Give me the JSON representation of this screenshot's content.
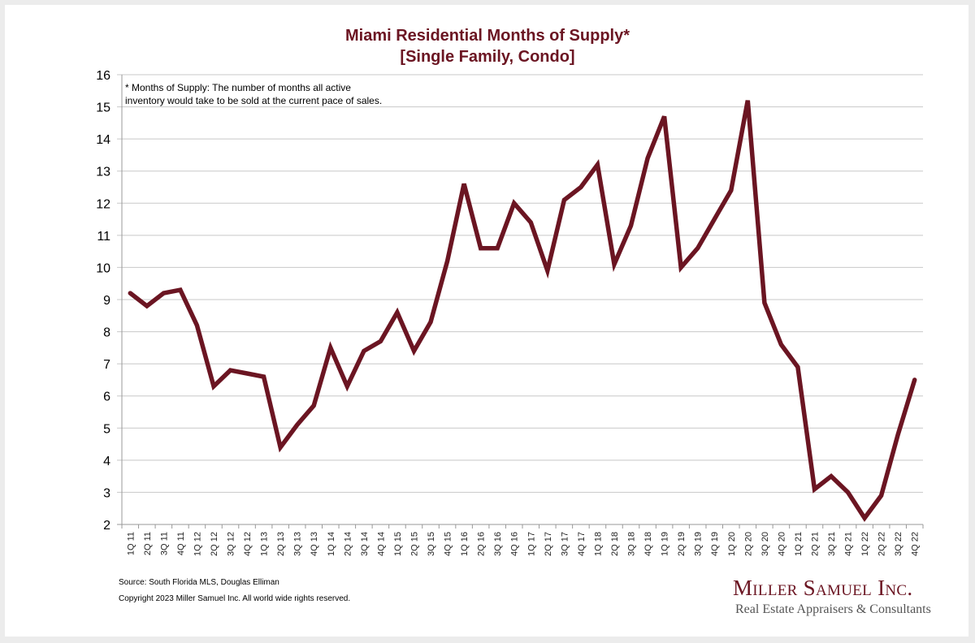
{
  "chart_data": {
    "type": "line",
    "title": "Miami Residential Months of Supply*",
    "subtitle": "[Single Family, Condo]",
    "xlabel": "",
    "ylabel": "",
    "ylim": [
      2,
      16
    ],
    "yticks": [
      2,
      3,
      4,
      5,
      6,
      7,
      8,
      9,
      10,
      11,
      12,
      13,
      14,
      15,
      16
    ],
    "grid": true,
    "line_color": "#6b1522",
    "categories": [
      "1Q 11",
      "2Q 11",
      "3Q 11",
      "4Q 11",
      "1Q 12",
      "2Q 12",
      "3Q 12",
      "4Q 12",
      "1Q 13",
      "2Q 13",
      "3Q 13",
      "4Q 13",
      "1Q 14",
      "2Q 14",
      "3Q 14",
      "4Q 14",
      "1Q 15",
      "2Q 15",
      "3Q 15",
      "4Q 15",
      "1Q 16",
      "2Q 16",
      "3Q 16",
      "4Q 16",
      "1Q 17",
      "2Q 17",
      "3Q 17",
      "4Q 17",
      "1Q 18",
      "2Q 18",
      "3Q 18",
      "4Q 18",
      "1Q 19",
      "2Q 19",
      "3Q 19",
      "4Q 19",
      "1Q 20",
      "2Q 20",
      "3Q 20",
      "4Q 20",
      "1Q 21",
      "2Q 21",
      "3Q 21",
      "4Q 21",
      "1Q 22",
      "2Q 22",
      "3Q 22",
      "4Q 22"
    ],
    "series": [
      {
        "name": "Months of Supply",
        "values": [
          9.2,
          8.8,
          9.2,
          9.3,
          8.2,
          6.3,
          6.8,
          6.7,
          6.6,
          4.4,
          5.1,
          5.7,
          7.5,
          6.3,
          7.4,
          7.7,
          8.6,
          7.4,
          8.3,
          10.2,
          12.6,
          10.6,
          10.6,
          12.0,
          11.4,
          9.9,
          12.1,
          12.5,
          13.2,
          10.1,
          11.3,
          13.4,
          14.7,
          10.0,
          10.6,
          11.5,
          12.4,
          15.2,
          8.9,
          7.6,
          6.9,
          3.1,
          3.5,
          3.0,
          2.2,
          2.9,
          4.8,
          6.5
        ]
      }
    ],
    "annotation": [
      "* Months of Supply: The number of months all active",
      "inventory would take to be sold at the current pace of sales."
    ]
  },
  "footer": {
    "source": "Source: South Florida MLS, Douglas Elliman",
    "copyright": "Copyright 2023 Miller Samuel Inc.  All world wide rights reserved."
  },
  "logo": {
    "name": "Miller Samuel Inc.",
    "tagline": "Real Estate Appraisers & Consultants"
  }
}
